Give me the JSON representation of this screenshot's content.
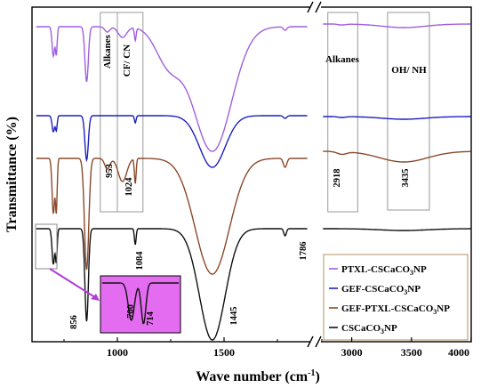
{
  "chart_data": {
    "type": "line",
    "xlabel": "Wave number (cm",
    "xlabel_sup": "-1",
    "xlabel_close": ")",
    "ylabel": "Transmittance (%)",
    "x_ticks": [
      "1000",
      "1500",
      "3000",
      "3500",
      "4000"
    ],
    "legend_position": "bottom-right",
    "colors": {
      "ptxl": "#a05fe0",
      "gef": "#1f1fbf",
      "gefptxl": "#8a4a2a",
      "cscaco3": "#111111",
      "inset_bg": "#e36cf0",
      "arrow": "#b03fd6"
    },
    "series": [
      {
        "key": "ptxl",
        "name": "PTXL-CSCaCO",
        "sub": "3",
        "tail": "NP"
      },
      {
        "key": "gef",
        "name": "GEF-CSCaCO",
        "sub": "3",
        "tail": "NP"
      },
      {
        "key": "gefptxl",
        "name": "GEF-PTXL-CSCaCO",
        "sub": "3",
        "tail": "NP"
      },
      {
        "key": "cscaco3",
        "name": "CSCaCO",
        "sub": "3",
        "tail": "NP"
      }
    ],
    "regions": [
      {
        "label": "Alkanes",
        "x": [
          920,
          1000
        ]
      },
      {
        "label": "CF/ CN",
        "x": [
          1000,
          1120
        ]
      },
      {
        "label": "Alkanes",
        "x": [
          2800,
          3050
        ]
      },
      {
        "label": "OH/ NH",
        "x": [
          3300,
          3650
        ]
      }
    ],
    "peak_labels": [
      {
        "text": "953",
        "x": 953
      },
      {
        "text": "1024",
        "x": 1024
      },
      {
        "text": "2918",
        "x": 2918
      },
      {
        "text": "3435",
        "x": 3435
      },
      {
        "text": "1084",
        "x": 1084
      },
      {
        "text": "1786",
        "x": 1786
      },
      {
        "text": "856",
        "x": 856
      },
      {
        "text": "1445",
        "x": 1445
      }
    ],
    "inset_labels": [
      "700",
      "714"
    ]
  }
}
